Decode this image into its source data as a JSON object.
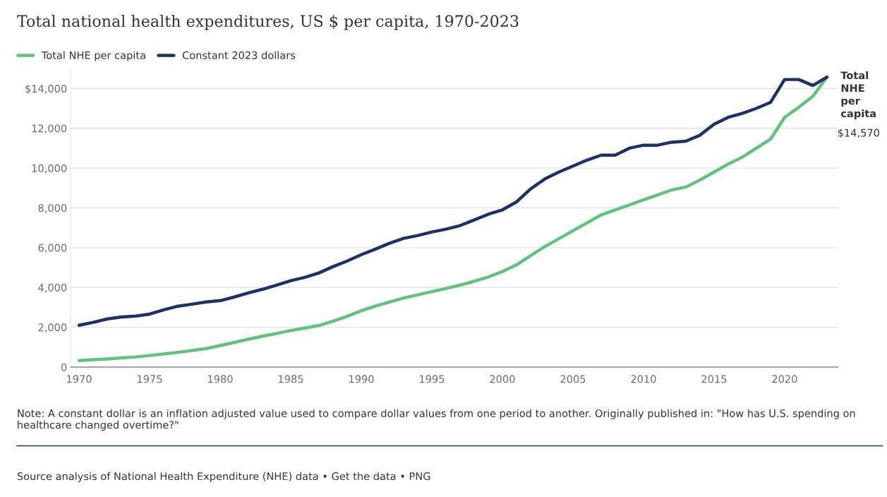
{
  "chart_data": {
    "type": "line",
    "title": "Total national health expenditures, US $ per capita, 1970-2023",
    "x": [
      1970,
      1971,
      1972,
      1973,
      1974,
      1975,
      1976,
      1977,
      1978,
      1979,
      1980,
      1981,
      1982,
      1983,
      1984,
      1985,
      1986,
      1987,
      1988,
      1989,
      1990,
      1991,
      1992,
      1993,
      1994,
      1995,
      1996,
      1997,
      1998,
      1999,
      2000,
      2001,
      2002,
      2003,
      2004,
      2005,
      2006,
      2007,
      2008,
      2009,
      2010,
      2011,
      2012,
      2013,
      2014,
      2015,
      2016,
      2017,
      2018,
      2019,
      2020,
      2021,
      2022,
      2023
    ],
    "series": [
      {
        "name": "Total NHE per capita",
        "color": "#5ec47a",
        "values": [
          330,
          370,
          410,
          460,
          510,
          580,
          660,
          740,
          830,
          930,
          1080,
          1240,
          1400,
          1550,
          1690,
          1840,
          1960,
          2090,
          2310,
          2550,
          2830,
          3060,
          3270,
          3470,
          3630,
          3790,
          3950,
          4120,
          4310,
          4530,
          4800,
          5140,
          5600,
          6050,
          6450,
          6850,
          7250,
          7650,
          7900,
          8150,
          8400,
          8650,
          8900,
          9050,
          9400,
          9800,
          10200,
          10550,
          11000,
          11450,
          12550,
          13050,
          13600,
          14570
        ]
      },
      {
        "name": "Constant 2023 dollars",
        "color": "#1c3166",
        "values": [
          2100,
          2250,
          2420,
          2520,
          2560,
          2660,
          2880,
          3060,
          3160,
          3270,
          3340,
          3520,
          3730,
          3910,
          4120,
          4340,
          4510,
          4730,
          5050,
          5330,
          5650,
          5930,
          6220,
          6470,
          6610,
          6790,
          6930,
          7110,
          7390,
          7680,
          7900,
          8300,
          8950,
          9450,
          9800,
          10100,
          10400,
          10650,
          10650,
          11000,
          11150,
          11150,
          11300,
          11350,
          11650,
          12200,
          12550,
          12750,
          13000,
          13300,
          14450,
          14450,
          14150,
          14570
        ]
      }
    ],
    "xlim": [
      1969.4,
      2023.8
    ],
    "xticks": [
      1970,
      1975,
      1980,
      1985,
      1990,
      1995,
      2000,
      2005,
      2010,
      2015,
      2020
    ],
    "ylim": [
      0,
      14900
    ],
    "yticks": [
      {
        "value": 0,
        "label": "0"
      },
      {
        "value": 2000,
        "label": "2,000"
      },
      {
        "value": 4000,
        "label": "4,000"
      },
      {
        "value": 6000,
        "label": "6,000"
      },
      {
        "value": 8000,
        "label": "8,000"
      },
      {
        "value": 10000,
        "label": "10,000"
      },
      {
        "value": 12000,
        "label": "12,000"
      },
      {
        "value": 14000,
        "label": "$14,000"
      }
    ],
    "grid": "y",
    "legend": "top left",
    "marker": "none",
    "line_style": "solid",
    "annotations": [
      {
        "text": "Total\nNHE\nper\ncapita",
        "x": 2023,
        "y": 14570
      },
      "$14,570",
      "Note: A constant dollar is an inflation adjusted value used to compare dollar values from one period to another. Originally published in: \"How has U.S. spending on healthcare changed overtime?\"",
      "Source analysis of National Health Expenditure (NHE) data • Get the data • PNG"
    ]
  }
}
